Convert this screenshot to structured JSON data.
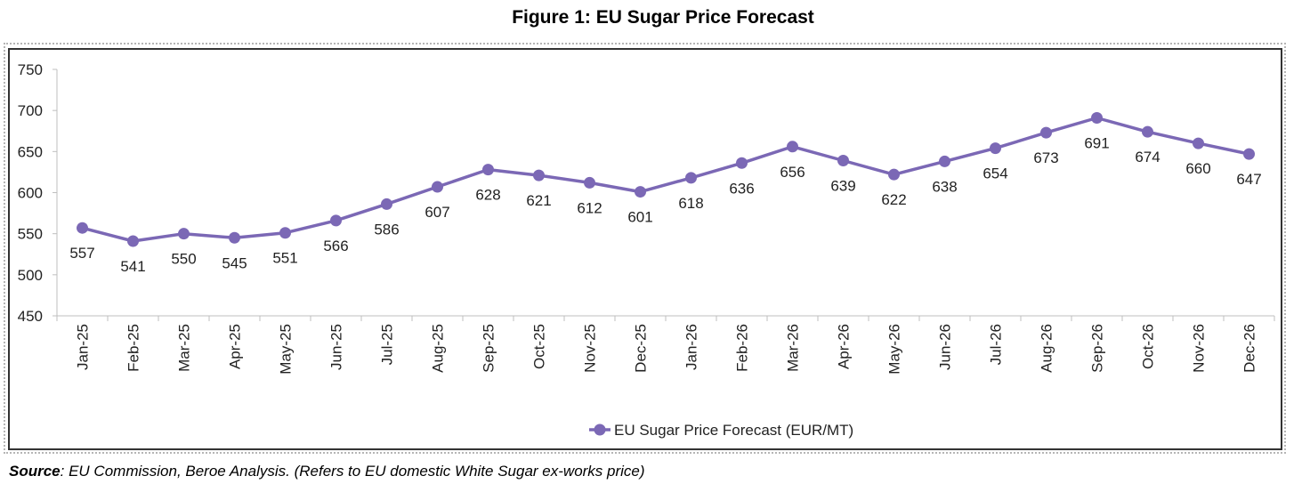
{
  "chart_data": {
    "type": "line",
    "title": "Figure 1: EU Sugar Price Forecast",
    "xlabel": "",
    "ylabel": "",
    "ylim": [
      450,
      750
    ],
    "yticks": [
      "450",
      "500",
      "550",
      "600",
      "650",
      "700",
      "750"
    ],
    "categories": [
      "Jan-25",
      "Feb-25",
      "Mar-25",
      "Apr-25",
      "May-25",
      "Jun-25",
      "Jul-25",
      "Aug-25",
      "Sep-25",
      "Oct-25",
      "Nov-25",
      "Dec-25",
      "Jan-26",
      "Feb-26",
      "Mar-26",
      "Apr-26",
      "May-26",
      "Jun-26",
      "Jul-26",
      "Aug-26",
      "Sep-26",
      "Oct-26",
      "Nov-26",
      "Dec-26"
    ],
    "series": [
      {
        "name": "EU Sugar Price Forecast (EUR/MT)",
        "color": "#7b68b5",
        "values": [
          557,
          541,
          550,
          545,
          551,
          566,
          586,
          607,
          628,
          621,
          612,
          601,
          618,
          636,
          656,
          639,
          622,
          638,
          654,
          673,
          691,
          674,
          660,
          647
        ],
        "labels": [
          "557",
          "541",
          "550",
          "545",
          "551",
          "566",
          "586",
          "607",
          "628",
          "621",
          "612",
          "601",
          "618",
          "636",
          "656",
          "639",
          "622",
          "638",
          "654",
          "673",
          "691",
          "674",
          "660",
          "647"
        ]
      }
    ],
    "legend": "bottom-center",
    "grid": false
  },
  "source": {
    "label": "Source",
    "text": ": EU Commission, Beroe Analysis. (Refers to EU domestic White Sugar ex-works price)"
  }
}
